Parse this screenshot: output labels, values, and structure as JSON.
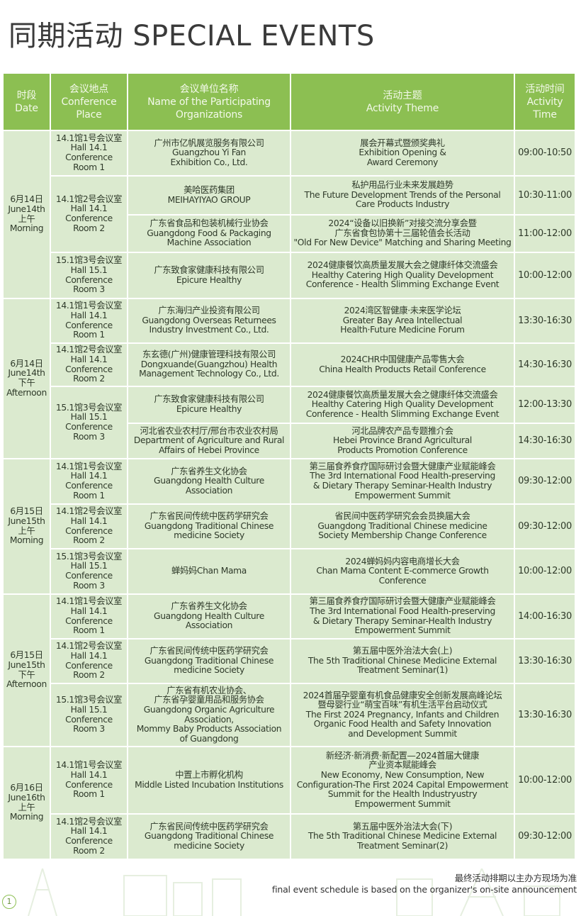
{
  "title": "同期活动 SPECIAL EVENTS",
  "colors": {
    "header_bg": "#8cbf52",
    "cell_bg": "#dbeacf",
    "header_text": "#f3f9ea"
  },
  "headers": [
    "时段\nDate",
    "会议地点\nConference\nPlace",
    "会议单位名称\nName of the Participating\nOrganizations",
    "活动主题\nActivity Theme",
    "活动时间\nActivity\nTime"
  ],
  "groups": [
    {
      "date": "6月14日\nJune14th\n上午\nMorning",
      "rooms": [
        {
          "place": "14.1馆1号会议室\nHall 14.1\nConference\nRoom 1",
          "sessions": [
            {
              "org": "广州市亿帆展览服务有限公司\nGuangzhou Yi Fan\nExhibition Co., Ltd.",
              "theme": "展会开幕式暨颁奖典礼\nExhibition Opening &\nAward Ceremony",
              "time": "09:00-10:50"
            }
          ]
        },
        {
          "place": "14.1馆2号会议室\nHall 14.1\nConference\nRoom 2",
          "sessions": [
            {
              "org": "美哈医药集团\nMEIHAYIYAO GROUP",
              "theme": "私护用品行业未来发展趋势\nThe Future Development Trends of the Personal\nCare Products Industry",
              "time": "10:30-11:00"
            },
            {
              "org": "广东省食品和包装机械行业协会\nGuangdong Food & Packaging\nMachine Association",
              "theme": "2024“设备以旧换新”对接交流分享会暨\n广东省食包协第十三届轮值会长活动\n\"Old For New Device\" Matching and Sharing Meeting",
              "time": "11:00-12:00"
            }
          ]
        },
        {
          "place": "15.1馆3号会议室\nHall 15.1\nConference\nRoom 3",
          "sessions": [
            {
              "org": "广东致食家健康科技有限公司\nEpicure Healthy",
              "theme": "2024健康餐饮高质量发展大会之健康纤体交流盛会\nHealthy Catering High Quality Development\nConference - Health Slimming Exchange Event",
              "time": "10:00-12:00"
            }
          ]
        }
      ]
    },
    {
      "date": "6月14日\nJune14th\n下午\nAfternoon",
      "rooms": [
        {
          "place": "14.1馆1号会议室\nHall 14.1\nConference\nRoom 1",
          "sessions": [
            {
              "org": "广东海归产业投资有限公司\nGuangdong Overseas Returnees\nIndustry Investment Co., Ltd.",
              "theme": "2024湾区智健康·未来医学论坛\nGreater Bay Area Intellectual\nHealth·Future Medicine Forum",
              "time": "13:30-16:30"
            }
          ]
        },
        {
          "place": "14.1馆2号会议室\nHall 14.1\nConference\nRoom 2",
          "sessions": [
            {
              "org": "东玄德(广州)健康管理科技有限公司\nDongxuande(Guangzhou) Health\nManagement Technology Co., Ltd.",
              "theme": "2024CHR中国健康产品零售大会\nChina Health Products Retail Conference",
              "time": "14:30-16:30"
            }
          ]
        },
        {
          "place": "15.1馆3号会议室\nHall 15.1\nConference\nRoom 3",
          "sessions": [
            {
              "org": "广东致食家健康科技有限公司\nEpicure Healthy",
              "theme": "2024健康餐饮高质量发展大会之健康纤体交流盛会\nHealthy Catering High Quality Development\nConference - Health Slimming Exchange Event",
              "time": "12:00-13:30"
            },
            {
              "org": "河北省农业农村厅/邢台市农业农村局\nDepartment of Agriculture and Rural\nAffairs of Hebei Province",
              "theme": "河北品牌农产品专题推介会\nHebei Province Brand Agricultural\nProducts Promotion Conference",
              "time": "14:30-16:30"
            }
          ]
        }
      ]
    },
    {
      "date": "6月15日\nJune15th\n上午\nMorning",
      "rooms": [
        {
          "place": "14.1馆1号会议室\nHall 14.1\nConference\nRoom 1",
          "sessions": [
            {
              "org": "广东省养生文化协会\nGuangdong Health Culture\nAssociation",
              "theme": "第三届食养食疗国际研讨会暨大健康产业赋能峰会\nThe 3rd International Food Health-preserving\n& Dietary Therapy Seminar-Health Industry\nEmpowerment Summit",
              "time": "09:30-12:00"
            }
          ]
        },
        {
          "place": "14.1馆2号会议室\nHall 14.1\nConference\nRoom 2",
          "sessions": [
            {
              "org": "广东省民间传统中医药学研究会\nGuangdong Traditional Chinese\nmedicine Society",
              "theme": "省民间中医药学研究会会员换届大会\nGuangdong Traditional Chinese medicine\nSociety Membership Change Conference",
              "time": "09:30-12:00"
            }
          ]
        },
        {
          "place": "15.1馆3号会议室\nHall 15.1\nConference\nRoom 3",
          "sessions": [
            {
              "org": "蝉妈妈Chan Mama",
              "theme": "2024蝉妈妈内容电商增长大会\nChan Mama Content E-commerce Growth\nConference",
              "time": "10:00-12:00"
            }
          ]
        }
      ]
    },
    {
      "date": "6月15日\nJune15th\n下午\nAfternoon",
      "rooms": [
        {
          "place": "14.1馆1号会议室\nHall 14.1\nConference\nRoom 1",
          "sessions": [
            {
              "org": "广东省养生文化协会\nGuangdong Health Culture\nAssociation",
              "theme": "第三届食养食疗国际研讨会暨大健康产业赋能峰会\nThe 3rd International Food Health-preserving\n& Dietary Therapy Seminar-Health Industry\nEmpowerment Summit",
              "time": "14:00-16:30"
            }
          ]
        },
        {
          "place": "14.1馆2号会议室\nHall 14.1\nConference\nRoom 2",
          "sessions": [
            {
              "org": "广东省民间传统中医药学研究会\nGuangdong Traditional Chinese\nmedicine Society",
              "theme": "第五届中医外治法大会(上)\nThe 5th Traditional Chinese Medicine External\nTreatment Seminar(1)",
              "time": "13:30-16:30"
            }
          ]
        },
        {
          "place": "15.1馆3号会议室\nHall 15.1\nConference\nRoom 3",
          "sessions": [
            {
              "org": "广东省有机农业协会、\n广东省孕婴童用品和服务协会\nGuangdong Organic Agriculture\nAssociation,\nMommy Baby Products Association\nof Guangdong",
              "theme": "2024首届孕婴童有机食品健康安全创新发展高峰论坛\n暨母婴行业“萌宝百味”有机生活平台启动仪式\nThe First 2024 Pregnancy, Infants and Children\nOrganic Food Health and Safety Innovation\nand Development Summit",
              "time": "13:30-16:30"
            }
          ]
        }
      ]
    },
    {
      "date": "6月16日\nJune16th\n上午\nMorning",
      "rooms": [
        {
          "place": "14.1馆1号会议室\nHall 14.1\nConference\nRoom 1",
          "sessions": [
            {
              "org": "中置上市孵化机构\nMiddle Listed Incubation Institutions",
              "theme": "新经济·新消费·新配置—2024首届大健康\n产业资本赋能峰会\nNew Economy, New Consumption, New\nConfiguration-The First 2024 Capital Empowerment\nSummit for the Health Industryustry\nEmpowerment Summit",
              "time": "10:00-12:00"
            }
          ]
        },
        {
          "place": "14.1馆2号会议室\nHall 14.1\nConference\nRoom 2",
          "sessions": [
            {
              "org": "广东省民间传统中医药学研究会\nGuangdong Traditional Chinese\nmedicine Society",
              "theme": "第五届中医外治法大会(下)\nThe 5th Traditional Chinese Medicine External\nTreatment Seminar(2)",
              "time": "09:30-12:00"
            }
          ]
        }
      ]
    }
  ],
  "footer": {
    "note_cn": "最终活动排期以主办方现场为准",
    "note_en": "final event schedule is based on the organizer's on-site announcement",
    "page_number": "1"
  }
}
